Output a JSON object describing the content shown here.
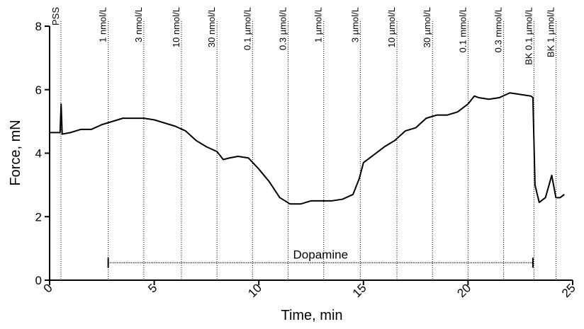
{
  "chart_data": {
    "type": "line",
    "x_label": "Time, min",
    "y_label": "Force, mN",
    "xlim": [
      0,
      25
    ],
    "xticks": [
      0,
      5,
      10,
      15,
      20,
      25
    ],
    "ylim": [
      0,
      8
    ],
    "yticks": [
      0,
      2,
      4,
      6,
      8
    ],
    "color": "#000000",
    "x": [
      0,
      0.5,
      0.55,
      0.6,
      1,
      1.5,
      2,
      2.5,
      3,
      3.5,
      4,
      4.5,
      5,
      5.5,
      6,
      6.5,
      7,
      7.5,
      8,
      8.3,
      8.6,
      9,
      9.5,
      10,
      10.5,
      11,
      11.5,
      12,
      12.5,
      13,
      13.5,
      14,
      14.5,
      14.8,
      15,
      15.5,
      16,
      16.5,
      17,
      17.5,
      18,
      18.5,
      19,
      19.5,
      20,
      20.3,
      20.5,
      21,
      21.5,
      22,
      22.5,
      23,
      23.1,
      23.2,
      23.4,
      23.7,
      24,
      24.2,
      24.4,
      24.6
    ],
    "values": [
      4.65,
      4.65,
      5.55,
      4.6,
      4.65,
      4.75,
      4.75,
      4.9,
      5.0,
      5.1,
      5.1,
      5.1,
      5.05,
      4.95,
      4.85,
      4.7,
      4.4,
      4.2,
      4.05,
      3.8,
      3.85,
      3.9,
      3.85,
      3.5,
      3.1,
      2.6,
      2.4,
      2.4,
      2.5,
      2.5,
      2.5,
      2.55,
      2.7,
      3.2,
      3.7,
      3.95,
      4.2,
      4.4,
      4.7,
      4.8,
      5.1,
      5.2,
      5.2,
      5.3,
      5.55,
      5.8,
      5.75,
      5.7,
      5.75,
      5.9,
      5.85,
      5.8,
      5.75,
      3.0,
      2.45,
      2.6,
      3.3,
      2.6,
      2.6,
      2.7
    ],
    "annotations": [
      {
        "label": "PSS",
        "x": 0.54
      },
      {
        "label": "1 nmol/L",
        "x": 2.8
      },
      {
        "label": "3 nmol/L",
        "x": 4.5
      },
      {
        "label": "10 nmol/L",
        "x": 6.3
      },
      {
        "label": "30 nmol/L",
        "x": 8.0
      },
      {
        "label": "0.1 µmol/L",
        "x": 9.7
      },
      {
        "label": "0.3 µmol/L",
        "x": 11.4
      },
      {
        "label": "1 µmol/L",
        "x": 13.1
      },
      {
        "label": "3 µmol/L",
        "x": 14.85
      },
      {
        "label": "10 µmol/L",
        "x": 16.6
      },
      {
        "label": "30 µmol/L",
        "x": 18.3
      },
      {
        "label": "0.1 mmol/L",
        "x": 20.0
      },
      {
        "label": "0.3 mmol/L",
        "x": 21.7
      },
      {
        "label": "BK 0.1 µmol/L",
        "x": 23.15
      },
      {
        "label": "BK 1 µmol/L",
        "x": 24.2
      }
    ],
    "range_annotation": {
      "label": "Dopamine",
      "start": 2.8,
      "end": 23.1,
      "y": 0.55
    }
  }
}
